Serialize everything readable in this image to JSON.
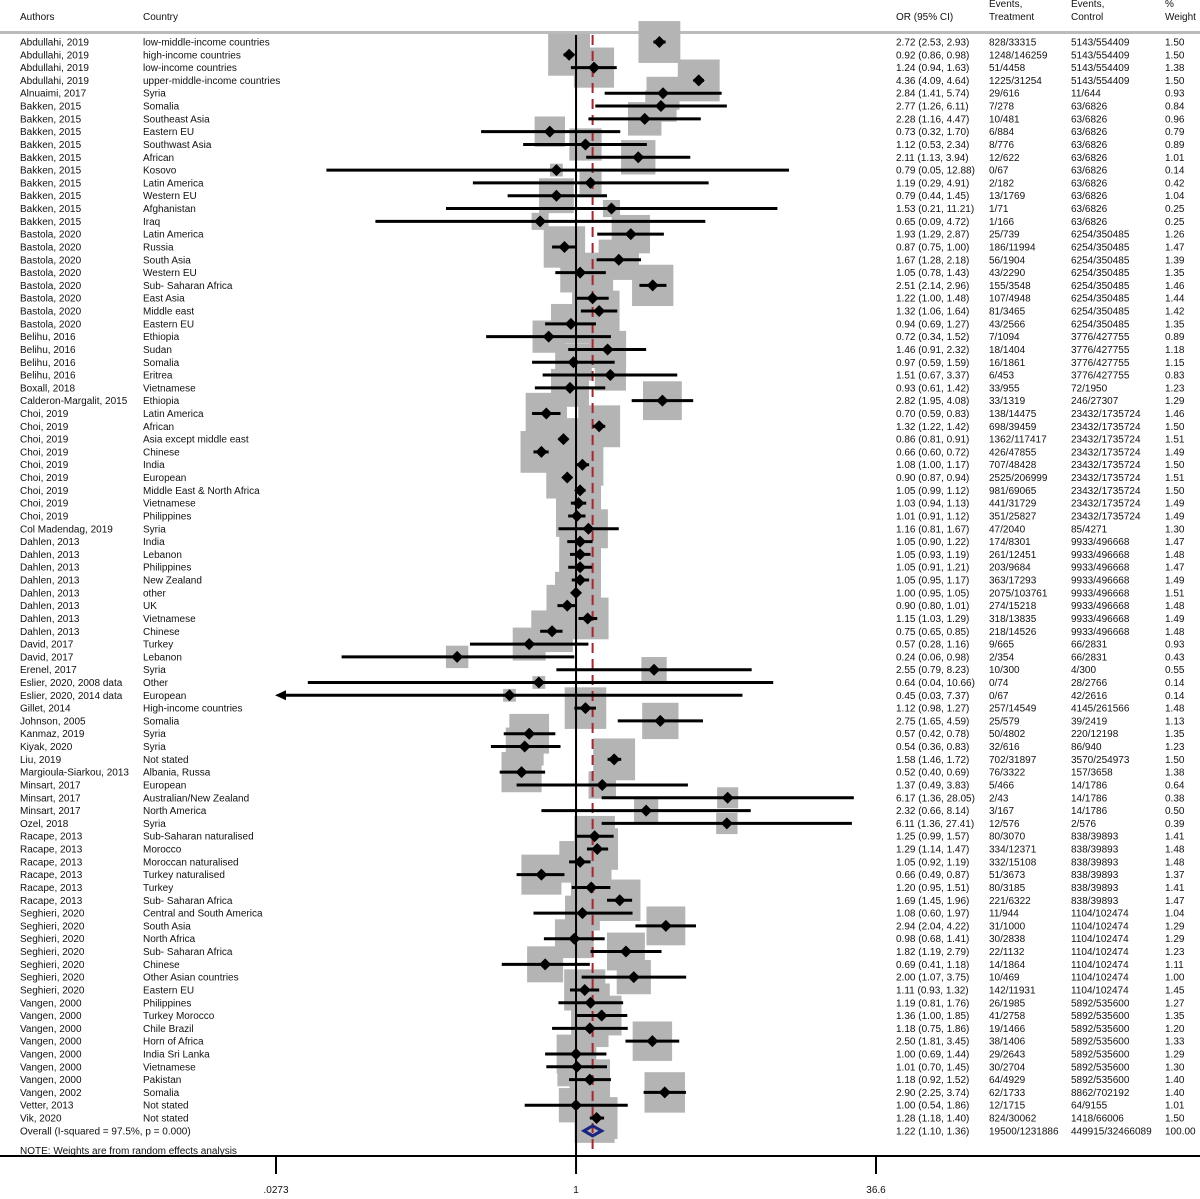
{
  "headers": {
    "authors": "Authors",
    "country": "Country",
    "or": "OR (95% CI)",
    "treatment": [
      "Events,",
      "Treatment"
    ],
    "control": [
      "Events,",
      "Control"
    ],
    "weight": [
      "%",
      "Weight"
    ]
  },
  "note": "NOTE: Weights are from random effects analysis",
  "colors": {
    "box": "#b4b4b4",
    "point": "#000000",
    "ci": "#000000",
    "overall_diamond": "#1a237e",
    "overall_line": "#a0282d",
    "header_rule": "#bbbbbb"
  },
  "chart_data": {
    "type": "forest",
    "x_scale": "log",
    "xlim": [
      0.0273,
      36.6
    ],
    "x_ticks": [
      ".0273",
      "1",
      "36.6"
    ],
    "null_value": 1,
    "overall": {
      "label": "Overall  (I-squared = 97.5%, p = 0.000)",
      "ci": "1.22 (1.10, 1.36)",
      "treatment": "19500/1231886",
      "control": "449915/32466089",
      "weight": "100.00"
    },
    "rows": [
      [
        "Abdullahi, 2019",
        "low-middle-income countries",
        "2.72 (2.53, 2.93)",
        "828/33315",
        "5143/554409",
        "1.50"
      ],
      [
        "Abdullahi, 2019",
        "high-income countries",
        "0.92 (0.86, 0.98)",
        "1248/146259",
        "5143/554409",
        "1.50"
      ],
      [
        "Abdullahi, 2019",
        "low-income countries",
        "1.24 (0.94, 1.63)",
        "51/4458",
        "5143/554409",
        "1.38"
      ],
      [
        "Abdullahi, 2019",
        "upper-middle-income countries",
        "4.36 (4.09, 4.64)",
        "1225/31254",
        "5143/554409",
        "1.50"
      ],
      [
        "Alnuaimi, 2017",
        "Syria",
        "2.84 (1.41, 5.74)",
        "29/616",
        "11/644",
        "0.93"
      ],
      [
        "Bakken, 2015",
        "Somalia",
        "2.77 (1.26, 6.11)",
        "7/278",
        "63/6826",
        "0.84"
      ],
      [
        "Bakken, 2015",
        "Southeast Asia",
        "2.28 (1.16, 4.47)",
        "10/481",
        "63/6826",
        "0.96"
      ],
      [
        "Bakken, 2015",
        "Eastern EU",
        "0.73 (0.32, 1.70)",
        "6/884",
        "63/6826",
        "0.79"
      ],
      [
        "Bakken, 2015",
        "Southwast Asia",
        "1.12 (0.53, 2.34)",
        "8/776",
        "63/6826",
        "0.89"
      ],
      [
        "Bakken, 2015",
        "African",
        "2.11 (1.13, 3.94)",
        "12/622",
        "63/6826",
        "1.01"
      ],
      [
        "Bakken, 2015",
        "Kosovo",
        "0.79 (0.05, 12.88)",
        "0/67",
        "63/6826",
        "0.14"
      ],
      [
        "Bakken, 2015",
        "Latin America",
        "1.19 (0.29, 4.91)",
        "2/182",
        "63/6826",
        "0.42"
      ],
      [
        "Bakken, 2015",
        "Western EU",
        "0.79 (0.44, 1.45)",
        "13/1769",
        "63/6826",
        "1.04"
      ],
      [
        "Bakken, 2015",
        "Afghanistan",
        "1.53 (0.21, 11.21)",
        "1/71",
        "63/6826",
        "0.25"
      ],
      [
        "Bakken, 2015",
        "Iraq",
        "0.65 (0.09, 4.72)",
        "1/166",
        "63/6826",
        "0.25"
      ],
      [
        "Bastola, 2020",
        "Latin America",
        "1.93 (1.29, 2.87)",
        "25/739",
        "6254/350485",
        "1.26"
      ],
      [
        "Bastola, 2020",
        "Russia",
        "0.87 (0.75, 1.00)",
        "186/11994",
        "6254/350485",
        "1.47"
      ],
      [
        "Bastola, 2020",
        "South Asia",
        "1.67 (1.28, 2.18)",
        "56/1904",
        "6254/350485",
        "1.39"
      ],
      [
        "Bastola, 2020",
        "Western EU",
        "1.05 (0.78, 1.43)",
        "43/2290",
        "6254/350485",
        "1.35"
      ],
      [
        "Bastola, 2020",
        "Sub- Saharan Africa",
        "2.51 (2.14, 2.96)",
        "155/3548",
        "6254/350485",
        "1.46"
      ],
      [
        "Bastola, 2020",
        "East Asia",
        "1.22 (1.00, 1.48)",
        "107/4948",
        "6254/350485",
        "1.44"
      ],
      [
        "Bastola, 2020",
        "Middle east",
        "1.32 (1.06, 1.64)",
        "81/3465",
        "6254/350485",
        "1.42"
      ],
      [
        "Bastola, 2020",
        "Eastern EU",
        "0.94 (0.69, 1.27)",
        "43/2566",
        "6254/350485",
        "1.35"
      ],
      [
        "Belihu, 2016",
        "Ethiopia",
        "0.72 (0.34, 1.52)",
        "7/1094",
        "3776/427755",
        "0.89"
      ],
      [
        "Belihu, 2016",
        "Sudan",
        "1.46 (0.91, 2.32)",
        "18/1404",
        "3776/427755",
        "1.18"
      ],
      [
        "Belihu, 2016",
        "Somalia",
        "0.97 (0.59, 1.59)",
        "16/1861",
        "3776/427755",
        "1.15"
      ],
      [
        "Belihu, 2016",
        "Eritrea",
        "1.51 (0.67, 3.37)",
        "6/453",
        "3776/427755",
        "0.83"
      ],
      [
        "Boxall, 2018",
        "Vietnamese",
        "0.93 (0.61, 1.42)",
        "33/955",
        "72/1950",
        "1.23"
      ],
      [
        "Calderon-Margalit, 2015",
        "Ethiopia",
        "2.82 (1.95, 4.08)",
        "33/1319",
        "246/27307",
        "1.29"
      ],
      [
        "Choi, 2019",
        "Latin America",
        "0.70 (0.59, 0.83)",
        "138/14475",
        "23432/1735724",
        "1.46"
      ],
      [
        "Choi, 2019",
        "African",
        "1.32 (1.22, 1.42)",
        "698/39459",
        "23432/1735724",
        "1.50"
      ],
      [
        "Choi, 2019",
        "Asia except middle east",
        "0.86 (0.81, 0.91)",
        "1362/117417",
        "23432/1735724",
        "1.51"
      ],
      [
        "Choi, 2019",
        "Chinese",
        "0.66 (0.60, 0.72)",
        "426/47855",
        "23432/1735724",
        "1.49"
      ],
      [
        "Choi, 2019",
        "India",
        "1.08 (1.00, 1.17)",
        "707/48428",
        "23432/1735724",
        "1.50"
      ],
      [
        "Choi, 2019",
        "European",
        "0.90 (0.87, 0.94)",
        "2525/206999",
        "23432/1735724",
        "1.51"
      ],
      [
        "Choi, 2019",
        "Middle East & North Africa",
        "1.05 (0.99, 1.12)",
        "981/69065",
        "23432/1735724",
        "1.50"
      ],
      [
        "Choi, 2019",
        "Vietnamese",
        "1.03 (0.94, 1.13)",
        "441/31729",
        "23432/1735724",
        "1.49"
      ],
      [
        "Choi, 2019",
        "Philippines",
        "1.01 (0.91, 1.12)",
        "351/25827",
        "23432/1735724",
        "1.49"
      ],
      [
        "Col Madendag, 2019",
        "Syria",
        "1.16 (0.81, 1.67)",
        "47/2040",
        "85/4271",
        "1.30"
      ],
      [
        "Dahlen, 2013",
        "India",
        "1.05 (0.90, 1.22)",
        "174/8301",
        "9933/496668",
        "1.47"
      ],
      [
        "Dahlen, 2013",
        "Lebanon",
        "1.05 (0.93, 1.19)",
        "261/12451",
        "9933/496668",
        "1.48"
      ],
      [
        "Dahlen, 2013",
        "Philippines",
        "1.05 (0.91, 1.21)",
        "203/9684",
        "9933/496668",
        "1.47"
      ],
      [
        "Dahlen, 2013",
        "New Zealand",
        "1.05 (0.95, 1.17)",
        "363/17293",
        "9933/496668",
        "1.49"
      ],
      [
        "Dahlen, 2013",
        "other",
        "1.00 (0.95, 1.05)",
        "2075/103761",
        "9933/496668",
        "1.51"
      ],
      [
        "Dahlen, 2013",
        "UK",
        "0.90 (0.80, 1.01)",
        "274/15218",
        "9933/496668",
        "1.48"
      ],
      [
        "Dahlen, 2013",
        "Vietnamese",
        "1.15 (1.03, 1.29)",
        "318/13835",
        "9933/496668",
        "1.49"
      ],
      [
        "Dahlen, 2013",
        "Chinese",
        "0.75 (0.65, 0.85)",
        "218/14526",
        "9933/496668",
        "1.48"
      ],
      [
        "David, 2017",
        "Turkey",
        "0.57 (0.28, 1.16)",
        "9/665",
        "66/2831",
        "0.93"
      ],
      [
        "David, 2017",
        "Lebanon",
        "0.24 (0.06, 0.98)",
        "2/354",
        "66/2831",
        "0.43"
      ],
      [
        "Erenel, 2017",
        "Syria",
        "2.55 (0.79, 8.23)",
        "10/300",
        "4/300",
        "0.55"
      ],
      [
        "Eslier, 2020, 2008 data",
        "Other",
        "0.64 (0.04, 10.66)",
        "0/74",
        "28/2766",
        "0.14"
      ],
      [
        "Eslier, 2020, 2014 data",
        "European",
        "0.45 (0.03, 7.37)",
        "0/67",
        "42/2616",
        "0.14"
      ],
      [
        "Gillet, 2014",
        "High-income countries",
        "1.12 (0.98, 1.27)",
        "257/14549",
        "4145/261566",
        "1.48"
      ],
      [
        "Johnson, 2005",
        "Somalia",
        "2.75 (1.65, 4.59)",
        "25/579",
        "39/2419",
        "1.13"
      ],
      [
        "Kanmaz, 2019",
        "Syria",
        "0.57 (0.42, 0.78)",
        "50/4802",
        "220/12198",
        "1.35"
      ],
      [
        "Kiyak, 2020",
        "Syria",
        "0.54 (0.36, 0.83)",
        "32/616",
        "86/940",
        "1.23"
      ],
      [
        "Liu, 2019",
        "Not stated",
        "1.58 (1.46, 1.72)",
        "702/31897",
        "3570/254973",
        "1.50"
      ],
      [
        "Margioula-Siarkou, 2013",
        "Albania, Russa",
        "0.52 (0.40, 0.69)",
        "76/3322",
        "157/3658",
        "1.38"
      ],
      [
        "Minsart, 2017",
        "European",
        "1.37 (0.49, 3.83)",
        "5/466",
        "14/1786",
        "0.64"
      ],
      [
        "Minsart, 2017",
        "Australian/New Zealand",
        "6.17 (1.36, 28.05)",
        "2/43",
        "14/1786",
        "0.38"
      ],
      [
        "Minsart, 2017",
        "North America",
        "2.32 (0.66, 8.14)",
        "3/167",
        "14/1786",
        "0.50"
      ],
      [
        "Ozel, 2018",
        "Syria",
        "6.11 (1.36, 27.41)",
        "12/576",
        "2/576",
        "0.39"
      ],
      [
        "Racape, 2013",
        "Sub-Saharan naturalised",
        "1.25 (0.99, 1.57)",
        "80/3070",
        "838/39893",
        "1.41"
      ],
      [
        "Racape, 2013",
        "Morocco",
        "1.29 (1.14, 1.47)",
        "334/12371",
        "838/39893",
        "1.48"
      ],
      [
        "Racape, 2013",
        "Moroccan naturalised",
        "1.05 (0.92, 1.19)",
        "332/15108",
        "838/39893",
        "1.48"
      ],
      [
        "Racape, 2013",
        "Turkey naturalised",
        "0.66 (0.49, 0.87)",
        "51/3673",
        "838/39893",
        "1.37"
      ],
      [
        "Racape, 2013",
        "Turkey",
        "1.20 (0.95, 1.51)",
        "80/3185",
        "838/39893",
        "1.41"
      ],
      [
        "Racape, 2013",
        "Sub- Saharan Africa",
        "1.69 (1.45, 1.96)",
        "221/6322",
        "838/39893",
        "1.47"
      ],
      [
        "Seghieri, 2020",
        "Central and South America",
        "1.08 (0.60, 1.97)",
        "11/944",
        "1104/102474",
        "1.04"
      ],
      [
        "Seghieri, 2020",
        "South Asia",
        "2.94 (2.04, 4.22)",
        "31/1000",
        "1104/102474",
        "1.29"
      ],
      [
        "Seghieri, 2020",
        "North Africa",
        "0.98 (0.68, 1.41)",
        "30/2838",
        "1104/102474",
        "1.29"
      ],
      [
        "Seghieri, 2020",
        "Sub- Saharan Africa",
        "1.82 (1.19, 2.79)",
        "22/1132",
        "1104/102474",
        "1.23"
      ],
      [
        "Seghieri, 2020",
        "Chinese",
        "0.69 (0.41, 1.18)",
        "14/1864",
        "1104/102474",
        "1.11"
      ],
      [
        "Seghieri, 2020",
        "Other Asian countries",
        "2.00 (1.07, 3.75)",
        "10/469",
        "1104/102474",
        "1.00"
      ],
      [
        "Seghieri, 2020",
        "Eastern EU",
        "1.11 (0.93, 1.32)",
        "142/11931",
        "1104/102474",
        "1.45"
      ],
      [
        "Vangen, 2000",
        "Philippines",
        "1.19 (0.81, 1.76)",
        "26/1985",
        "5892/535600",
        "1.27"
      ],
      [
        "Vangen, 2000",
        "Turkey Morocco",
        "1.36 (1.00, 1.85)",
        "41/2758",
        "5892/535600",
        "1.35"
      ],
      [
        "Vangen, 2000",
        "Chile Brazil",
        "1.18 (0.75, 1.86)",
        "19/1466",
        "5892/535600",
        "1.20"
      ],
      [
        "Vangen, 2000",
        "Horn of Africa",
        "2.50 (1.81, 3.45)",
        "38/1406",
        "5892/535600",
        "1.33"
      ],
      [
        "Vangen, 2000",
        "India Sri Lanka",
        "1.00 (0.69, 1.44)",
        "29/2643",
        "5892/535600",
        "1.29"
      ],
      [
        "Vangen, 2000",
        "Vietnamese",
        "1.01 (0.70, 1.45)",
        "30/2704",
        "5892/535600",
        "1.30"
      ],
      [
        "Vangen, 2000",
        "Pakistan",
        "1.18 (0.92, 1.52)",
        "64/4929",
        "5892/535600",
        "1.40"
      ],
      [
        "Vangen, 2002",
        "Somalia",
        "2.90 (2.25, 3.74)",
        "62/1733",
        "8862/702192",
        "1.40"
      ],
      [
        "Vetter, 2013",
        "Not stated",
        "1.00 (0.54, 1.86)",
        "12/1715",
        "64/9155",
        "1.01"
      ],
      [
        "Vik, 2020",
        "Not stated",
        "1.28 (1.18, 1.40)",
        "824/30062",
        "1418/66006",
        "1.50"
      ]
    ]
  }
}
